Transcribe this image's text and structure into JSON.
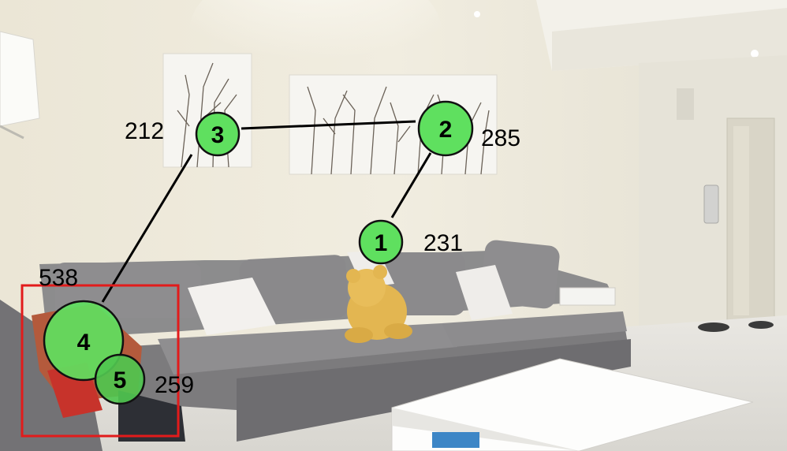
{
  "scene": {
    "description_icon": "living-room-photo"
  },
  "markers": [
    {
      "label": "1",
      "value": "231"
    },
    {
      "label": "2",
      "value": "285"
    },
    {
      "label": "3",
      "value": "212"
    },
    {
      "label": "4",
      "value": "538"
    },
    {
      "label": "5",
      "value": "259"
    }
  ],
  "colors": {
    "marker_fill": "#5fe05f",
    "marker_stroke": "#111111",
    "highlight_box": "#e21b1b",
    "path_line": "#000000"
  }
}
